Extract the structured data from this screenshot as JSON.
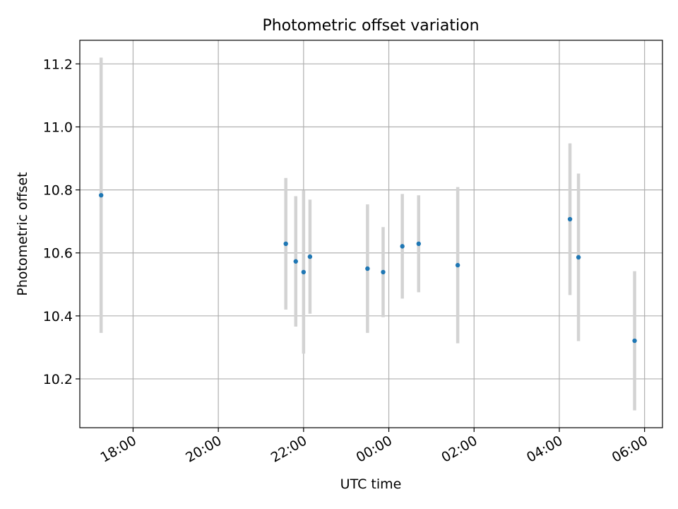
{
  "chart_data": {
    "type": "scatter",
    "title": "Photometric offset variation",
    "xlabel": "UTC time",
    "ylabel": "Photometric offset",
    "grid": true,
    "xlim_hours": [
      16.75,
      30.42
    ],
    "ylim": [
      10.045,
      11.275
    ],
    "x_ticks": [
      {
        "hour": 18,
        "label": "18:00"
      },
      {
        "hour": 20,
        "label": "20:00"
      },
      {
        "hour": 22,
        "label": "22:00"
      },
      {
        "hour": 24,
        "label": "00:00"
      },
      {
        "hour": 26,
        "label": "02:00"
      },
      {
        "hour": 28,
        "label": "04:00"
      },
      {
        "hour": 30,
        "label": "06:00"
      }
    ],
    "y_ticks": [
      {
        "value": 10.2,
        "label": "10.2"
      },
      {
        "value": 10.4,
        "label": "10.4"
      },
      {
        "value": 10.6,
        "label": "10.6"
      },
      {
        "value": 10.8,
        "label": "10.8"
      },
      {
        "value": 11.0,
        "label": "11.0"
      },
      {
        "value": 11.2,
        "label": "11.2"
      }
    ],
    "colors": {
      "point": "#1f77b4",
      "errorbar": "#d3d3d3",
      "grid": "#b0b0b0"
    },
    "points": [
      {
        "time": "17:15",
        "y": 10.783,
        "err": 0.437
      },
      {
        "time": "21:35",
        "y": 10.629,
        "err": 0.209
      },
      {
        "time": "21:49",
        "y": 10.573,
        "err": 0.207
      },
      {
        "time": "22:00",
        "y": 10.539,
        "err": 0.259
      },
      {
        "time": "22:09",
        "y": 10.588,
        "err": 0.181
      },
      {
        "time": "23:30",
        "y": 10.55,
        "err": 0.204
      },
      {
        "time": "23:52",
        "y": 10.539,
        "err": 0.143
      },
      {
        "time": "00:19",
        "y": 10.621,
        "err": 0.166
      },
      {
        "time": "00:42",
        "y": 10.629,
        "err": 0.154
      },
      {
        "time": "01:37",
        "y": 10.561,
        "err": 0.248
      },
      {
        "time": "04:15",
        "y": 10.707,
        "err": 0.241
      },
      {
        "time": "04:27",
        "y": 10.586,
        "err": 0.266
      },
      {
        "time": "05:46",
        "y": 10.321,
        "err": 0.221
      }
    ]
  }
}
